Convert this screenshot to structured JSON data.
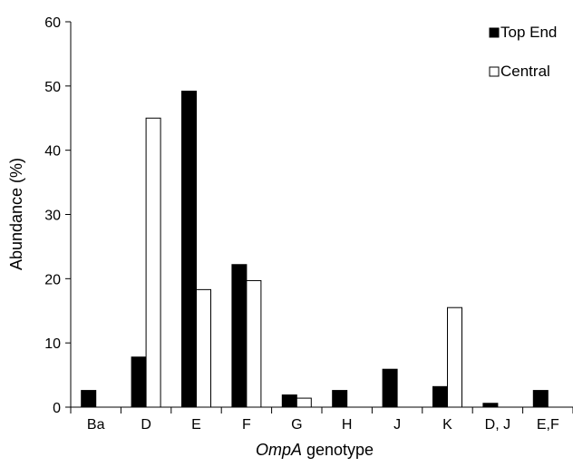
{
  "chart_data": {
    "type": "bar",
    "title": "",
    "xlabel_italic": "OmpA",
    "xlabel_rest": " genotype",
    "ylabel": "Abundance (%)",
    "ylim": [
      0,
      60
    ],
    "yticks": [
      0,
      10,
      20,
      30,
      40,
      50,
      60
    ],
    "categories": [
      "Ba",
      "D",
      "E",
      "F",
      "G",
      "H",
      "J",
      "K",
      "D, J",
      "E,F"
    ],
    "series": [
      {
        "name": "Top End",
        "color": "#000000",
        "fill": "solid",
        "values": [
          2.6,
          7.8,
          49.2,
          22.2,
          1.9,
          2.6,
          5.9,
          3.2,
          0.6,
          2.6
        ]
      },
      {
        "name": "Central",
        "color": "#ffffff",
        "fill": "outline",
        "values": [
          0,
          45.0,
          18.3,
          19.7,
          1.4,
          0,
          0,
          15.5,
          0,
          0
        ]
      }
    ],
    "legend_position": "top-right",
    "grid": false
  }
}
